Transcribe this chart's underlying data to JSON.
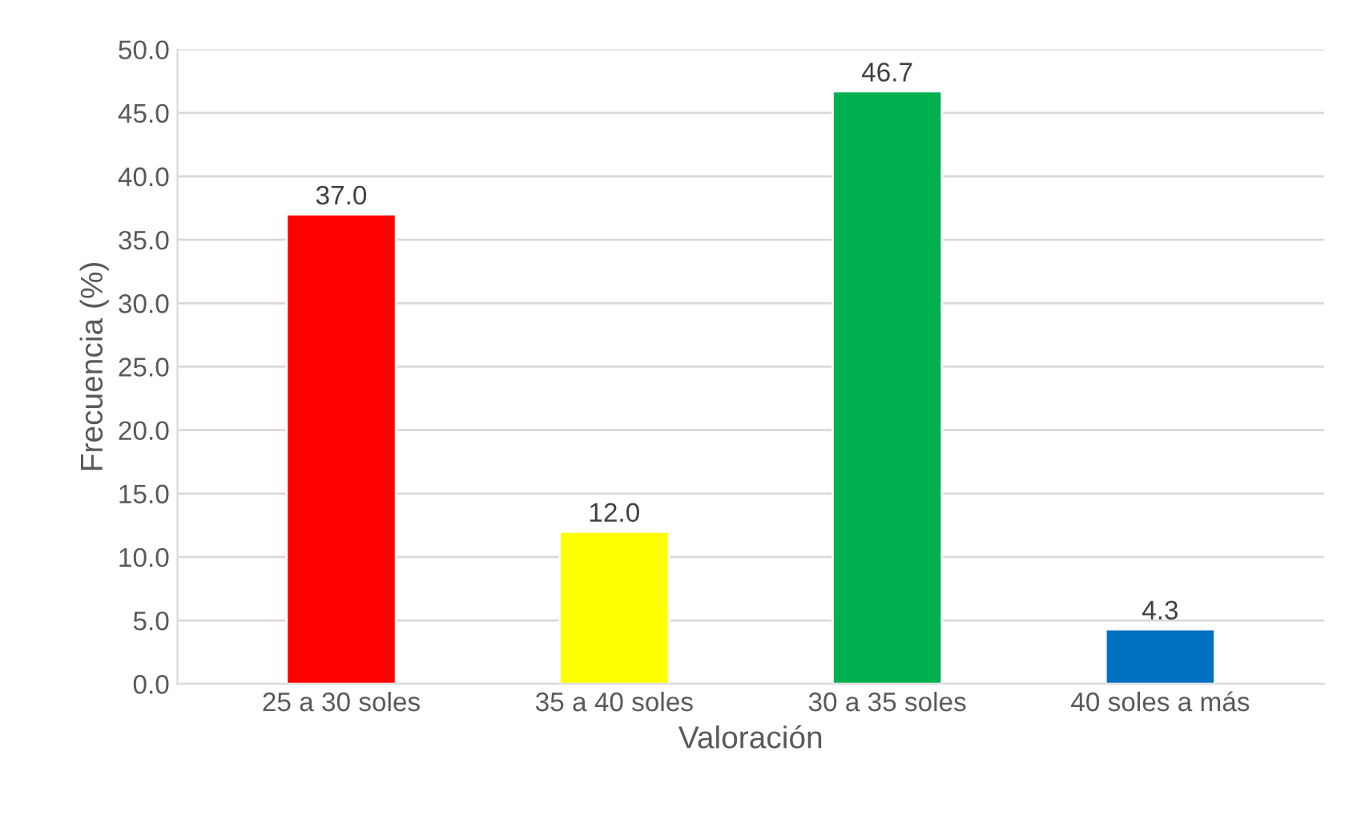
{
  "chart_data": {
    "type": "bar",
    "xlabel": "Valoración",
    "ylabel": "Frecuencia (%)",
    "categories": [
      "25 a 30 soles",
      "35 a 40 soles",
      "30 a 35 soles",
      "40 soles a más"
    ],
    "values": [
      37.0,
      12.0,
      46.7,
      4.3
    ],
    "colors": [
      "#ff0000",
      "#ffff00",
      "#00b050",
      "#0070c0"
    ],
    "value_labels": [
      "37.0",
      "12.0",
      "46.7",
      "4.3"
    ],
    "ylim": [
      0,
      50
    ],
    "yticks": [
      {
        "value": 0,
        "label": "0.0"
      },
      {
        "value": 5,
        "label": "5.0"
      },
      {
        "value": 10,
        "label": "10.0"
      },
      {
        "value": 15,
        "label": "15.0"
      },
      {
        "value": 20,
        "label": "20.0"
      },
      {
        "value": 25,
        "label": "25.0"
      },
      {
        "value": 30,
        "label": "30.0"
      },
      {
        "value": 35,
        "label": "35.0"
      },
      {
        "value": 40,
        "label": "40.0"
      },
      {
        "value": 45,
        "label": "45.0"
      },
      {
        "value": 50,
        "label": "50.0"
      }
    ],
    "grid": "y"
  }
}
